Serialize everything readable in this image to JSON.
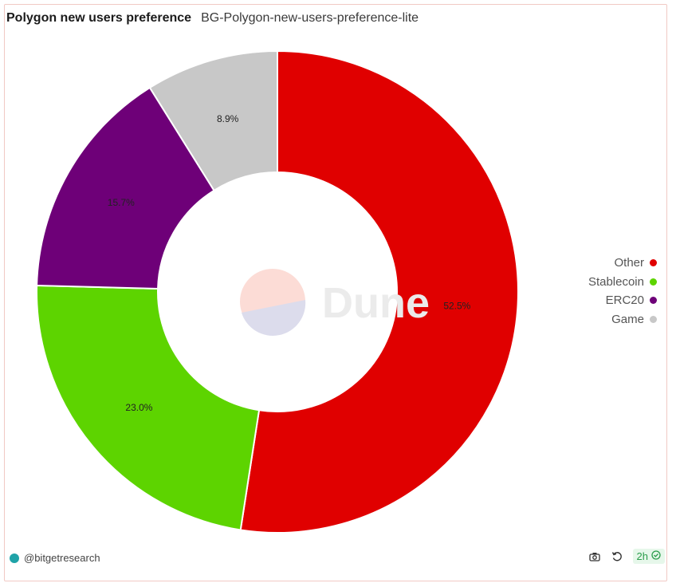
{
  "header": {
    "title": "Polygon new users preference",
    "subtitle": "BG-Polygon-new-users-preference-lite"
  },
  "watermark": {
    "text": "Dune"
  },
  "footer": {
    "author": "@bitgetresearch",
    "refresh_badge": "2h",
    "icons": [
      "camera-icon",
      "refresh-icon",
      "check-circle-icon"
    ]
  },
  "chart_data": {
    "type": "pie",
    "donut": true,
    "categories": [
      "Other",
      "Stablecoin",
      "ERC20",
      "Game"
    ],
    "values": [
      52.5,
      23.0,
      15.7,
      8.9
    ],
    "labels": [
      "52.5%",
      "23.0%",
      "15.7%",
      "8.9%"
    ],
    "colors": [
      "#e00000",
      "#5dd400",
      "#6e0078",
      "#c8c8c8"
    ],
    "legend_position": "right",
    "title": "Polygon new users preference"
  }
}
